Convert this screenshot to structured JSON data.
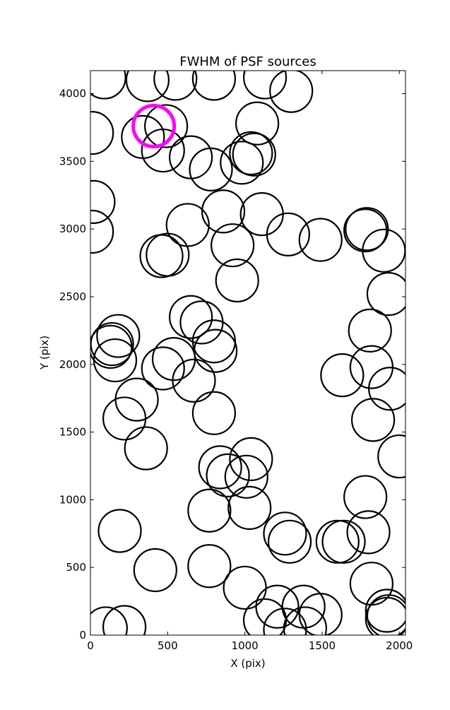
{
  "chart_data": {
    "type": "scatter",
    "title": "FWHM of PSF sources",
    "xlabel": "X (pix)",
    "ylabel": "Y (pix)",
    "xlim": [
      0,
      2040
    ],
    "ylim": [
      0,
      4170
    ],
    "xticks": [
      0,
      500,
      1000,
      1500,
      2000
    ],
    "yticks": [
      0,
      500,
      1000,
      1500,
      2000,
      2500,
      3000,
      3500,
      4000
    ],
    "xtick_labels": [
      "0",
      "500",
      "1000",
      "1500",
      "2000"
    ],
    "ytick_labels": [
      "0",
      "500",
      "1000",
      "1500",
      "2000",
      "2500",
      "3000",
      "3500",
      "4000"
    ],
    "grid": false,
    "marker": "open circle",
    "colors": {
      "points": "#000000",
      "highlight": "#ff00ff"
    },
    "points": [
      {
        "x": 90,
        "y": 4120
      },
      {
        "x": 370,
        "y": 4100
      },
      {
        "x": 550,
        "y": 4110
      },
      {
        "x": 800,
        "y": 4110
      },
      {
        "x": 1130,
        "y": 4120
      },
      {
        "x": 1300,
        "y": 4020
      },
      {
        "x": 1080,
        "y": 3780
      },
      {
        "x": 10,
        "y": 3710
      },
      {
        "x": 340,
        "y": 3680
      },
      {
        "x": 470,
        "y": 3580
      },
      {
        "x": 490,
        "y": 3760
      },
      {
        "x": 650,
        "y": 3530
      },
      {
        "x": 780,
        "y": 3440
      },
      {
        "x": 980,
        "y": 3490
      },
      {
        "x": 1040,
        "y": 3560
      },
      {
        "x": 1060,
        "y": 3550
      },
      {
        "x": 20,
        "y": 3200
      },
      {
        "x": 10,
        "y": 2980
      },
      {
        "x": 630,
        "y": 3030
      },
      {
        "x": 860,
        "y": 3130
      },
      {
        "x": 1110,
        "y": 3110
      },
      {
        "x": 1280,
        "y": 2960
      },
      {
        "x": 1490,
        "y": 2920
      },
      {
        "x": 1780,
        "y": 2990
      },
      {
        "x": 1790,
        "y": 3000
      },
      {
        "x": 1900,
        "y": 2840
      },
      {
        "x": 460,
        "y": 2800
      },
      {
        "x": 500,
        "y": 2810
      },
      {
        "x": 920,
        "y": 2880
      },
      {
        "x": 950,
        "y": 2620
      },
      {
        "x": 1930,
        "y": 2520
      },
      {
        "x": 650,
        "y": 2350
      },
      {
        "x": 720,
        "y": 2310
      },
      {
        "x": 800,
        "y": 2170
      },
      {
        "x": 810,
        "y": 2100
      },
      {
        "x": 180,
        "y": 2210
      },
      {
        "x": 140,
        "y": 2150
      },
      {
        "x": 130,
        "y": 2130
      },
      {
        "x": 160,
        "y": 2030
      },
      {
        "x": 1810,
        "y": 2250
      },
      {
        "x": 1820,
        "y": 1980
      },
      {
        "x": 1940,
        "y": 1820
      },
      {
        "x": 1630,
        "y": 1920
      },
      {
        "x": 540,
        "y": 2040
      },
      {
        "x": 470,
        "y": 1970
      },
      {
        "x": 670,
        "y": 1880
      },
      {
        "x": 300,
        "y": 1740
      },
      {
        "x": 220,
        "y": 1600
      },
      {
        "x": 800,
        "y": 1640
      },
      {
        "x": 1830,
        "y": 1590
      },
      {
        "x": 2000,
        "y": 1320
      },
      {
        "x": 360,
        "y": 1380
      },
      {
        "x": 840,
        "y": 1240
      },
      {
        "x": 890,
        "y": 1180
      },
      {
        "x": 1040,
        "y": 1300
      },
      {
        "x": 1010,
        "y": 1170
      },
      {
        "x": 770,
        "y": 920
      },
      {
        "x": 1030,
        "y": 940
      },
      {
        "x": 1780,
        "y": 1020
      },
      {
        "x": 1800,
        "y": 760
      },
      {
        "x": 190,
        "y": 770
      },
      {
        "x": 1260,
        "y": 750
      },
      {
        "x": 1290,
        "y": 690
      },
      {
        "x": 1600,
        "y": 690
      },
      {
        "x": 1640,
        "y": 690
      },
      {
        "x": 420,
        "y": 480
      },
      {
        "x": 770,
        "y": 510
      },
      {
        "x": 1000,
        "y": 350
      },
      {
        "x": 1820,
        "y": 380
      },
      {
        "x": 1130,
        "y": 110
      },
      {
        "x": 1210,
        "y": 210
      },
      {
        "x": 1260,
        "y": 40
      },
      {
        "x": 1380,
        "y": 210
      },
      {
        "x": 1390,
        "y": 50
      },
      {
        "x": 1490,
        "y": 150
      },
      {
        "x": 1920,
        "y": 180
      },
      {
        "x": 1920,
        "y": 120
      },
      {
        "x": 1930,
        "y": 140
      },
      {
        "x": 100,
        "y": 50
      },
      {
        "x": 220,
        "y": 60
      }
    ],
    "highlight_point": {
      "x": 410,
      "y": 3760
    }
  }
}
